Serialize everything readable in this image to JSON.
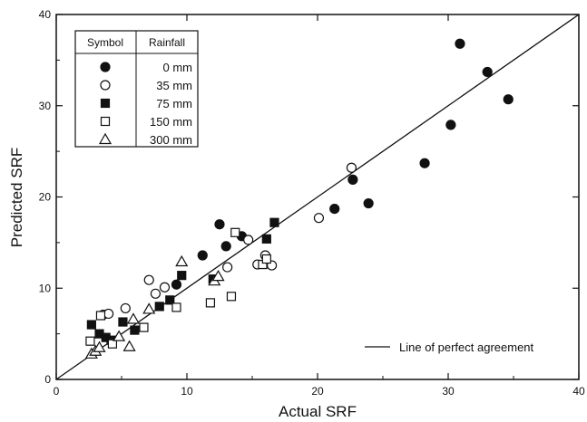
{
  "chart_data": {
    "type": "scatter",
    "title": "",
    "xlabel": "Actual SRF",
    "ylabel": "Predicted SRF",
    "xlim": [
      0,
      40
    ],
    "ylim": [
      0,
      40
    ],
    "xticks": [
      "0",
      "10",
      "20",
      "30",
      "40"
    ],
    "yticks": [
      "0",
      "10",
      "20",
      "30",
      "40"
    ],
    "grid": false,
    "legend_position": "top-left",
    "legend_header": [
      "Symbol",
      "Rainfall"
    ],
    "reference_line": {
      "label": "Line of perfect agreement",
      "from": [
        0,
        0
      ],
      "to": [
        40,
        40
      ]
    },
    "series": [
      {
        "name": "0 mm",
        "marker": "filled-circle",
        "x": [
          9.2,
          11.2,
          12.5,
          13.0,
          14.2,
          21.3,
          22.7,
          23.9,
          28.2,
          30.2,
          30.9,
          33.0,
          34.6
        ],
        "y": [
          10.4,
          13.6,
          17.0,
          14.6,
          15.7,
          18.7,
          21.9,
          19.3,
          23.7,
          27.9,
          36.8,
          33.7,
          30.7
        ]
      },
      {
        "name": "35 mm",
        "marker": "open-circle",
        "x": [
          3.6,
          4.0,
          5.3,
          7.1,
          7.6,
          8.3,
          13.1,
          14.7,
          15.4,
          16.0,
          16.5,
          20.1,
          22.6
        ],
        "y": [
          7.1,
          7.2,
          7.8,
          10.9,
          9.4,
          10.1,
          12.3,
          15.3,
          12.6,
          13.6,
          12.5,
          17.7,
          23.2
        ]
      },
      {
        "name": "75 mm",
        "marker": "filled-square",
        "x": [
          2.7,
          3.3,
          3.8,
          4.2,
          5.1,
          6.0,
          7.9,
          8.7,
          9.6,
          12.0,
          16.1,
          16.7
        ],
        "y": [
          6.0,
          5.0,
          4.6,
          4.3,
          6.3,
          5.4,
          8.0,
          8.7,
          11.4,
          11.0,
          15.4,
          17.2
        ]
      },
      {
        "name": "150 mm",
        "marker": "open-square",
        "x": [
          2.6,
          3.4,
          4.3,
          6.7,
          9.2,
          11.8,
          13.4,
          13.7,
          15.8,
          16.1
        ],
        "y": [
          4.2,
          7.0,
          3.9,
          5.7,
          7.9,
          8.4,
          9.1,
          16.1,
          12.6,
          13.2
        ]
      },
      {
        "name": "300 mm",
        "marker": "open-triangle",
        "x": [
          2.7,
          3.0,
          3.3,
          4.8,
          5.6,
          5.9,
          7.1,
          9.6,
          12.1,
          12.4
        ],
        "y": [
          2.8,
          3.1,
          3.5,
          4.7,
          3.6,
          6.6,
          7.7,
          12.9,
          10.8,
          11.3
        ]
      }
    ]
  }
}
